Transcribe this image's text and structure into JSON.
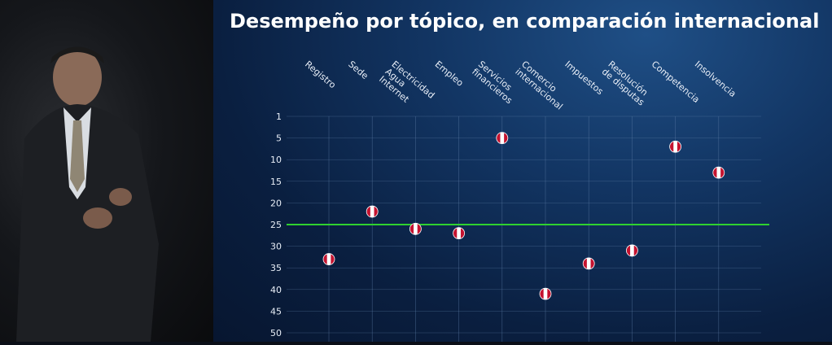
{
  "chart_data": {
    "type": "scatter",
    "title": "Desempeño por tópico, en comparación internacional",
    "categories": [
      "Registro",
      "Sede",
      "Electricidad Agua Internet",
      "Empleo",
      "Servicios financieros",
      "Comercio internacional",
      "Impuestos",
      "Resolución de disputas",
      "Competencia",
      "Insolvencia"
    ],
    "category_lines": [
      [
        "Registro"
      ],
      [
        "Sede"
      ],
      [
        "Electricidad",
        "Agua",
        "Internet"
      ],
      [
        "Empleo"
      ],
      [
        "Servicios",
        "financieros"
      ],
      [
        "Comercio",
        "internacional"
      ],
      [
        "Impuestos"
      ],
      [
        "Resolución",
        "de disputas"
      ],
      [
        "Competencia"
      ],
      [
        "Insolvencia"
      ]
    ],
    "series": [
      {
        "values": [
          33,
          22,
          26,
          27,
          5,
          41,
          34,
          31,
          7,
          13
        ]
      }
    ],
    "y_ticks": [
      "1",
      "5",
      "10",
      "15",
      "20",
      "25",
      "30",
      "35",
      "40",
      "45",
      "50"
    ],
    "ylim": [
      1,
      50
    ],
    "y_inverted": true,
    "reference_line": 25,
    "grid": true,
    "colors": {
      "reference_line": "#2fd12f",
      "marker_red": "#c4122f",
      "marker_white": "#ffffff",
      "grid": "#5f7fa8"
    }
  }
}
